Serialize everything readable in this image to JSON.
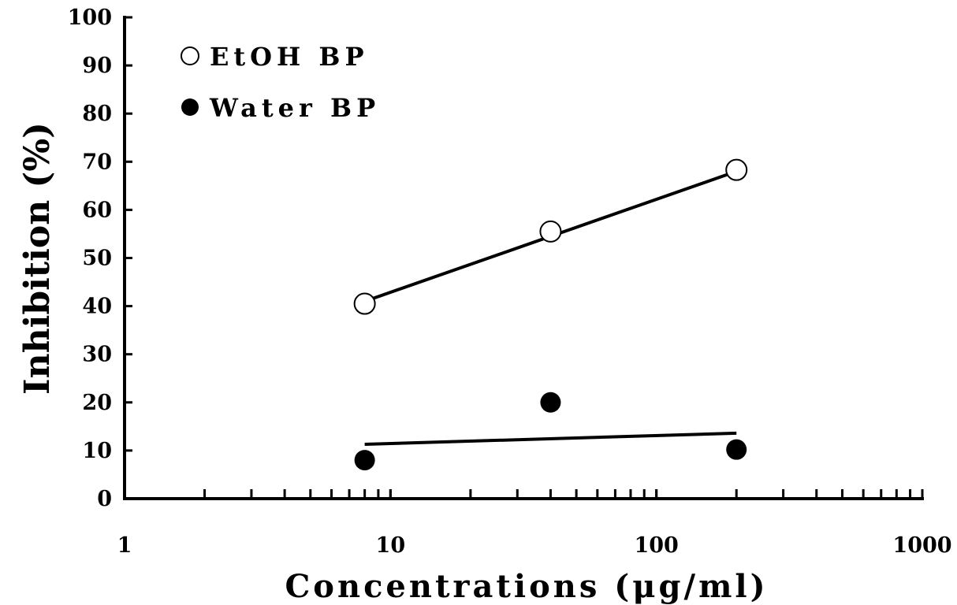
{
  "chart_data": {
    "type": "scatter",
    "title": "",
    "xlabel": "Concentrations (μg/ml)",
    "ylabel": "Inhibition (%)",
    "x_scale": "log",
    "xlim": [
      1,
      1000
    ],
    "ylim": [
      0,
      100
    ],
    "x_tick_labels": [
      "1",
      "10",
      "100",
      "1000"
    ],
    "y_tick_labels": [
      "0",
      "10",
      "20",
      "30",
      "40",
      "50",
      "60",
      "70",
      "80",
      "90",
      "100"
    ],
    "grid": false,
    "legend_position": "top-left",
    "series": [
      {
        "name": "EtOH BP",
        "marker": "open-circle",
        "x": [
          8,
          40,
          200
        ],
        "y": [
          40.5,
          55.5,
          68.3
        ],
        "trendline": {
          "type": "logarithmic",
          "x": [
            8,
            200
          ],
          "y": [
            41,
            68
          ]
        }
      },
      {
        "name": "Water BP",
        "marker": "filled-circle",
        "x": [
          8,
          40,
          200
        ],
        "y": [
          8,
          20,
          10.2
        ],
        "trendline": {
          "type": "logarithmic",
          "x": [
            8,
            200
          ],
          "y": [
            11.3,
            13.6
          ]
        }
      }
    ],
    "colors": {
      "ink": "#000000",
      "background": "#ffffff"
    }
  }
}
